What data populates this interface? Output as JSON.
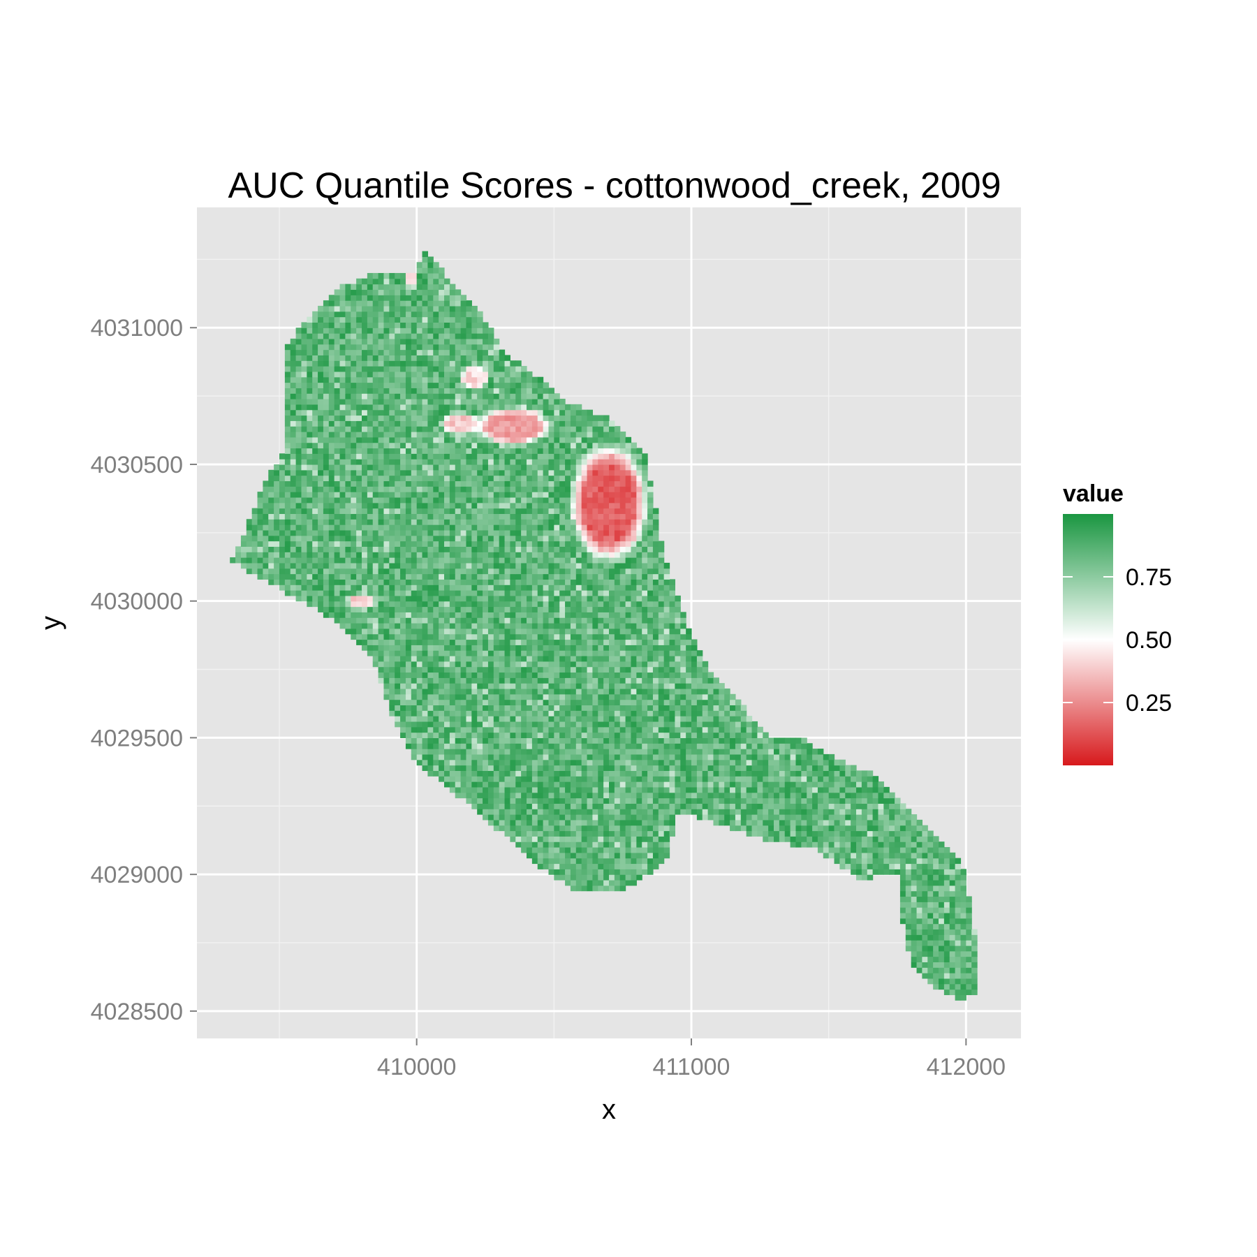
{
  "chart_data": {
    "type": "heatmap",
    "title": "AUC Quantile Scores - cottonwood_creek, 2009",
    "xlabel": "x",
    "ylabel": "y",
    "xlim": [
      409200,
      412200
    ],
    "ylim": [
      4028400,
      4031440
    ],
    "x_ticks": [
      410000,
      411000,
      412000
    ],
    "x_tick_labels": [
      "410000",
      "411000",
      "412000"
    ],
    "y_ticks": [
      4028500,
      4029000,
      4029500,
      4030000,
      4030500,
      4031000
    ],
    "y_tick_labels": [
      "4028500",
      "4029000",
      "4029500",
      "4030000",
      "4030500",
      "4031000"
    ],
    "grid": true,
    "legend": {
      "title": "value",
      "position": "right",
      "breaks": [
        0.25,
        0.5,
        0.75
      ],
      "break_labels": [
        "0.25",
        "0.50",
        "0.75"
      ],
      "range": [
        0.0,
        1.0
      ],
      "low_color": "#d7191c",
      "mid_color": "#ffffff",
      "high_color": "#1a9641"
    },
    "boundary_polygon": [
      [
        410000,
        4031210
      ],
      [
        410030,
        4031280
      ],
      [
        410100,
        4031200
      ],
      [
        410250,
        4031030
      ],
      [
        410310,
        4030920
      ],
      [
        410430,
        4030830
      ],
      [
        410550,
        4030730
      ],
      [
        410720,
        4030660
      ],
      [
        410830,
        4030550
      ],
      [
        410880,
        4030300
      ],
      [
        410900,
        4030160
      ],
      [
        410990,
        4029900
      ],
      [
        411070,
        4029750
      ],
      [
        411200,
        4029600
      ],
      [
        411300,
        4029500
      ],
      [
        411400,
        4029500
      ],
      [
        411530,
        4029420
      ],
      [
        411680,
        4029360
      ],
      [
        411800,
        4029240
      ],
      [
        411930,
        4029100
      ],
      [
        411990,
        4029030
      ],
      [
        412030,
        4028800
      ],
      [
        412050,
        4028560
      ],
      [
        411970,
        4028540
      ],
      [
        411870,
        4028600
      ],
      [
        411800,
        4028680
      ],
      [
        411770,
        4028820
      ],
      [
        411750,
        4029010
      ],
      [
        411620,
        4028980
      ],
      [
        411460,
        4029090
      ],
      [
        411260,
        4029130
      ],
      [
        411120,
        4029180
      ],
      [
        410940,
        4029230
      ],
      [
        410920,
        4029060
      ],
      [
        410770,
        4028950
      ],
      [
        410560,
        4028950
      ],
      [
        410430,
        4029040
      ],
      [
        410290,
        4029170
      ],
      [
        410150,
        4029290
      ],
      [
        410000,
        4029410
      ],
      [
        409910,
        4029580
      ],
      [
        409840,
        4029800
      ],
      [
        409730,
        4029910
      ],
      [
        409600,
        4029990
      ],
      [
        409400,
        4030100
      ],
      [
        409330,
        4030150
      ],
      [
        409400,
        4030320
      ],
      [
        409460,
        4030460
      ],
      [
        409530,
        4030560
      ],
      [
        409530,
        4030700
      ],
      [
        409520,
        4030930
      ],
      [
        409620,
        4031050
      ],
      [
        409720,
        4031150
      ],
      [
        409850,
        4031200
      ]
    ],
    "low_value_zones": [
      {
        "x": 410700,
        "y": 4030360,
        "rx": 150,
        "ry": 230,
        "value": 0.15
      },
      {
        "x": 410350,
        "y": 4030640,
        "rx": 150,
        "ry": 75,
        "value": 0.28
      },
      {
        "x": 410160,
        "y": 4030650,
        "rx": 80,
        "ry": 45,
        "value": 0.38
      },
      {
        "x": 410210,
        "y": 4030820,
        "rx": 60,
        "ry": 50,
        "value": 0.42
      },
      {
        "x": 409800,
        "y": 4030000,
        "rx": 60,
        "ry": 35,
        "value": 0.4
      },
      {
        "x": 409980,
        "y": 4031180,
        "rx": 25,
        "ry": 40,
        "value": 0.42
      }
    ]
  }
}
